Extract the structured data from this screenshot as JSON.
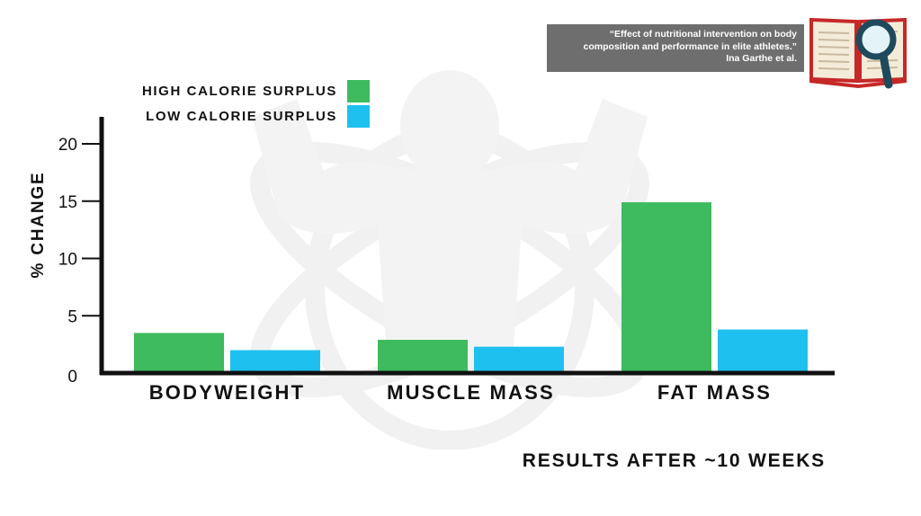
{
  "citation": {
    "line1": "“Effect of nutritional intervention on body",
    "line2": "composition and performance in elite athletes.”",
    "author": "Ina Garthe et al."
  },
  "icons": [
    "book-magnifier-icon",
    "flexing-figure-watermark-icon"
  ],
  "colors": {
    "high": "#3dbb5e",
    "low": "#1ec0f0",
    "axis": "#111111",
    "citation_bg": "#6e6e6e"
  },
  "chart_data": {
    "type": "bar",
    "categories": [
      "BODYWEIGHT",
      "MUSCLE MASS",
      "FAT MASS"
    ],
    "series": [
      {
        "name": "HIGH CALORIE SURPLUS",
        "values": [
          3.5,
          2.9,
          14.9
        ]
      },
      {
        "name": "LOW CALORIE SURPLUS",
        "values": [
          2.0,
          2.3,
          3.8
        ]
      }
    ],
    "ylabel": "% CHANGE",
    "xlabel": "RESULTS AFTER ~10 WEEKS",
    "ylim": [
      0,
      20
    ],
    "yticks": [
      0,
      5,
      10,
      15,
      20
    ],
    "grid": false,
    "legend_position": "top-left"
  }
}
